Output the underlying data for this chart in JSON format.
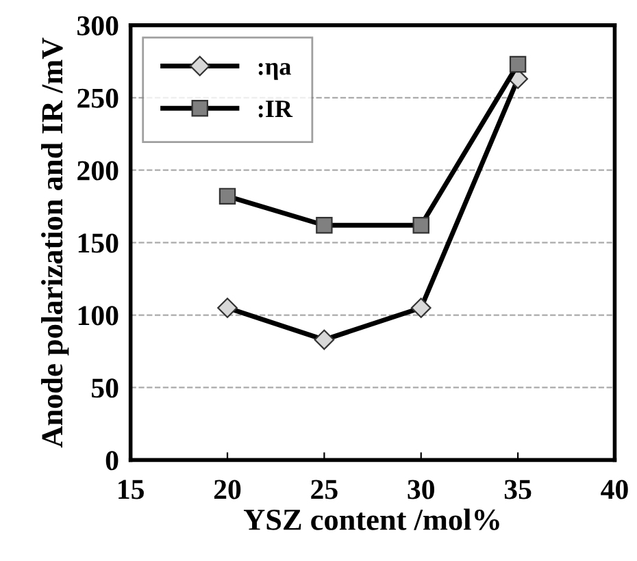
{
  "chart_data": {
    "type": "line",
    "xlabel": "YSZ content /mol%",
    "ylabel": "Anode polarization and IR /mV",
    "x": [
      20,
      25,
      30,
      35
    ],
    "series": [
      {
        "name": ":ηa",
        "color": "#000000",
        "marker": "diamond",
        "values": [
          105,
          83,
          105,
          263
        ]
      },
      {
        "name": ":IR",
        "color": "#000000",
        "marker": "square",
        "values": [
          182,
          162,
          162,
          273
        ]
      }
    ],
    "xlim": [
      15,
      40
    ],
    "xticks": [
      15,
      20,
      25,
      30,
      35,
      40
    ],
    "ylim": [
      0,
      300
    ],
    "yticks": [
      0,
      50,
      100,
      150,
      200,
      250,
      300
    ],
    "grid": "y",
    "legend": "top left",
    "line_style": "solid"
  }
}
